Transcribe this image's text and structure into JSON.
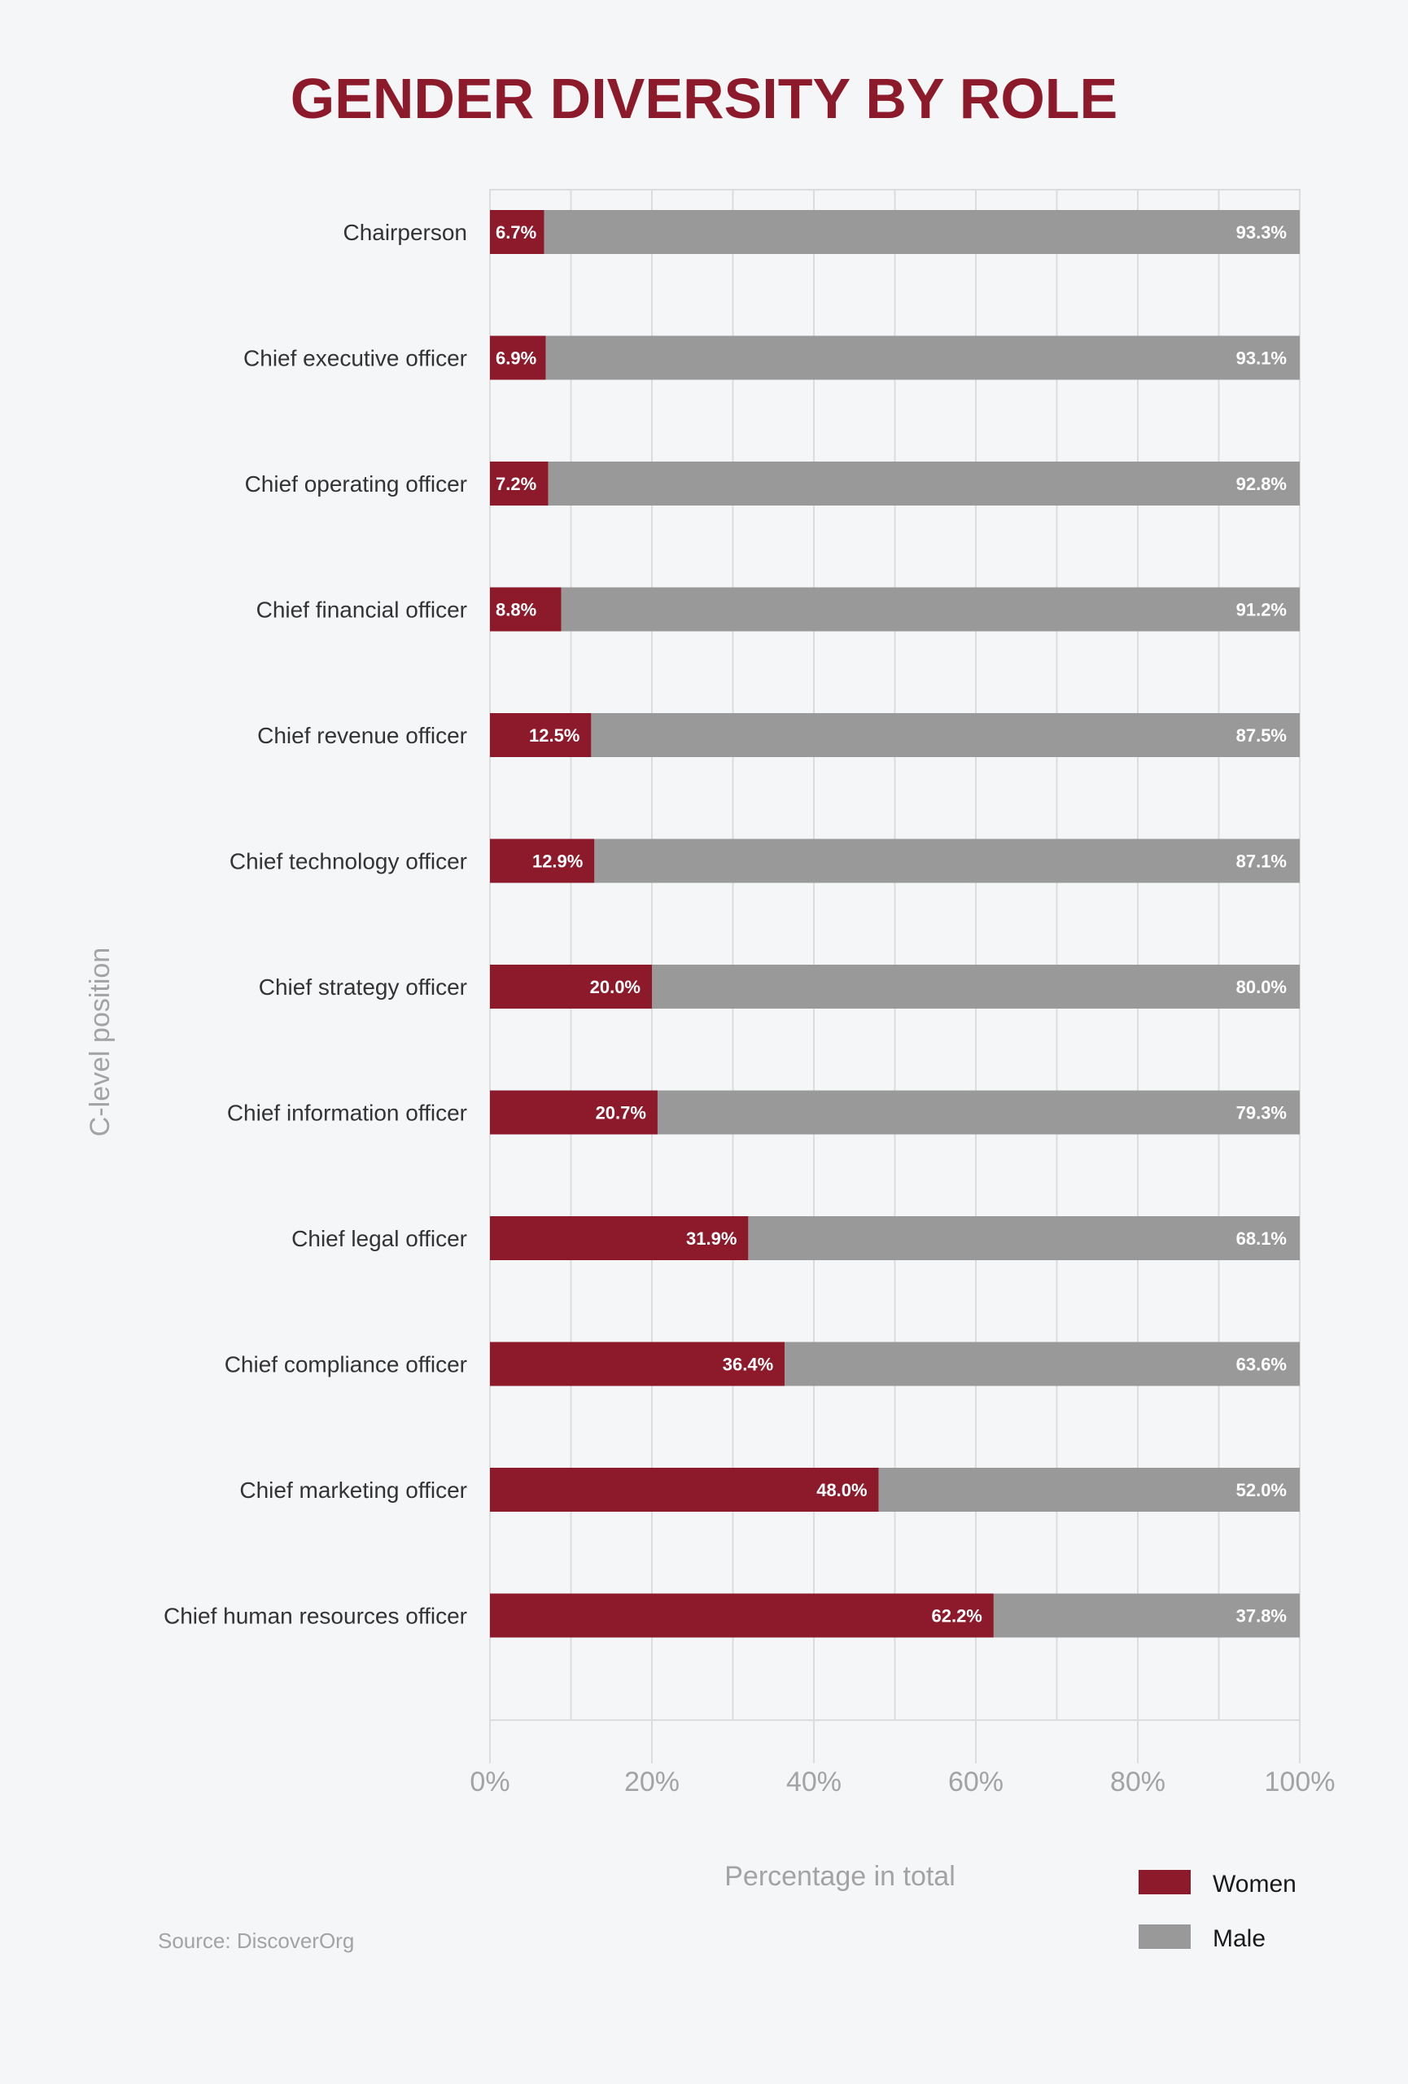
{
  "chart_data": {
    "type": "bar",
    "stacked": true,
    "orientation": "horizontal",
    "title": "GENDER DIVERSITY BY ROLE",
    "xlabel": "Percentage in total",
    "ylabel": "C-level position",
    "xlim": [
      0,
      100
    ],
    "x_ticks": [
      0,
      20,
      40,
      60,
      80,
      100
    ],
    "x_tick_labels": [
      "0%",
      "20%",
      "40%",
      "60%",
      "80%",
      "100%"
    ],
    "grid": true,
    "legend_position": "bottom-right",
    "categories": [
      "Chairperson",
      "Chief executive officer",
      "Chief operating officer",
      "Chief financial officer",
      "Chief revenue officer",
      "Chief technology officer",
      "Chief strategy officer",
      "Chief information officer",
      "Chief legal officer",
      "Chief compliance officer",
      "Chief marketing officer",
      "Chief human resources officer"
    ],
    "series": [
      {
        "name": "Women",
        "color": "#8c1a2b",
        "values": [
          6.7,
          6.9,
          7.2,
          8.8,
          12.5,
          12.9,
          20.0,
          20.7,
          31.9,
          36.4,
          48.0,
          62.2
        ],
        "labels": [
          "6.7%",
          "6.9%",
          "7.2%",
          "8.8%",
          "12.5%",
          "12.9%",
          "20.0%",
          "20.7%",
          "31.9%",
          "36.4%",
          "48.0%",
          "62.2%"
        ]
      },
      {
        "name": "Male",
        "color": "#999999",
        "values": [
          93.3,
          93.1,
          92.8,
          91.2,
          87.5,
          87.1,
          80.0,
          79.3,
          68.1,
          63.6,
          52.0,
          37.8
        ],
        "labels": [
          "93.3%",
          "93.1%",
          "92.8%",
          "91.2%",
          "87.5%",
          "87.1%",
          "80.0%",
          "79.3%",
          "68.1%",
          "63.6%",
          "52.0%",
          "37.8%"
        ]
      }
    ]
  },
  "source": "Source: DiscoverOrg",
  "colors": {
    "background": "#f5f6f8",
    "title": "#8c1a2b",
    "grid": "#dcdcdc",
    "axis_text": "#a3a3a3",
    "category_text": "#333333",
    "bar_label": "#ffffff"
  }
}
